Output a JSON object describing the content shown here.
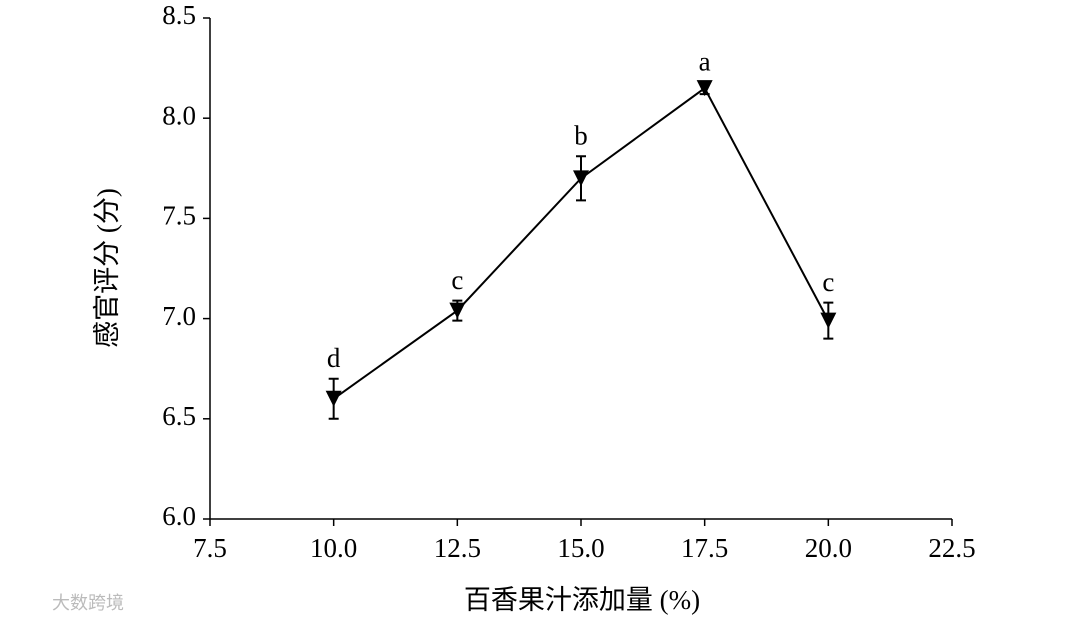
{
  "chart_data": {
    "type": "line",
    "x_label": "百香果汁添加量 (%)",
    "y_label": "感官评分 (分)",
    "x": [
      10,
      12.5,
      15,
      17.5,
      20
    ],
    "series": [
      {
        "color": "#000000",
        "values": [
          6.6,
          7.04,
          7.7,
          8.15,
          6.99
        ],
        "errors": [
          0.1,
          0.05,
          0.11,
          0.03,
          0.09
        ],
        "annotations": [
          "d",
          "c",
          "b",
          "a",
          "c"
        ]
      }
    ],
    "xlim": [
      7.5,
      22.5
    ],
    "xticks": [
      7.5,
      {
        "value": 10,
        "label": "10.0"
      },
      12.5,
      {
        "value": 15,
        "label": "15.0"
      },
      17.5,
      {
        "value": 20,
        "label": "20.0"
      },
      22.5
    ],
    "ylim": [
      6,
      8.5
    ],
    "yticks": [
      {
        "value": 6,
        "label": "6.0"
      },
      6.5,
      {
        "value": 7,
        "label": "7.0"
      },
      7.5,
      {
        "value": 8,
        "label": "8.0"
      },
      8.5
    ],
    "grid": false
  },
  "watermark": "大数跨境"
}
